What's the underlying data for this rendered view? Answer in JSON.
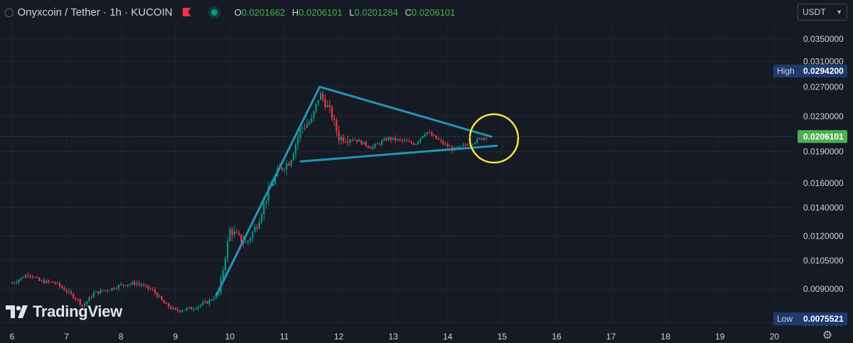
{
  "header": {
    "symbol": "Onyxcoin",
    "quote": "Tether",
    "interval": "1h",
    "exchange": "KUCOIN",
    "title_text": "Onyxcoin / Tether · 1h · KUCOIN",
    "ohlc": {
      "open_label": "O",
      "open": "0.0201662",
      "high_label": "H",
      "high": "0.0206101",
      "low_label": "L",
      "low": "0.0201284",
      "close_label": "C",
      "close": "0.0206101"
    },
    "currency_selector": "USDT",
    "icons": [
      "chevron-icon",
      "flag-icon",
      "status-dot-icon"
    ]
  },
  "watermark": "TradingView",
  "colors": {
    "background": "#161a25",
    "up": "#089981",
    "down": "#f23645",
    "trendline": "#2196b5",
    "circle": "#f5e339",
    "price_badge": "#4caf50",
    "marker_badge": "#1e3a6e"
  },
  "chart_data": {
    "type": "candlestick",
    "pair": "Onyxcoin / Tether",
    "interval": "1h",
    "x_ticks": [
      "6",
      "7",
      "8",
      "9",
      "10",
      "11",
      "12",
      "13",
      "14",
      "15",
      "16",
      "17",
      "18",
      "19",
      "20"
    ],
    "y_ticks": [
      "0.0350000",
      "0.0310000",
      "0.0270000",
      "0.0230000",
      "0.0190000",
      "0.0160000",
      "0.0140000",
      "0.0120000",
      "0.0105000",
      "0.0090000",
      "0.0075000"
    ],
    "y_scale": "log",
    "y_range": [
      0.0069,
      0.039
    ],
    "last_price": "0.0206101",
    "high_marker": {
      "label": "High",
      "value": "0.0294200"
    },
    "low_marker": {
      "label": "Low",
      "value": "0.0075521"
    },
    "trend": [
      [
        6.0,
        0.0093
      ],
      [
        6.2,
        0.0096
      ],
      [
        6.3,
        0.0098
      ],
      [
        6.5,
        0.0094
      ],
      [
        6.8,
        0.0093
      ],
      [
        7.0,
        0.0089
      ],
      [
        7.2,
        0.0085
      ],
      [
        7.3,
        0.0082
      ],
      [
        7.5,
        0.0088
      ],
      [
        7.8,
        0.009
      ],
      [
        8.0,
        0.0092
      ],
      [
        8.3,
        0.0093
      ],
      [
        8.6,
        0.0089
      ],
      [
        8.8,
        0.0083
      ],
      [
        9.0,
        0.008
      ],
      [
        9.3,
        0.0081
      ],
      [
        9.6,
        0.0084
      ],
      [
        9.8,
        0.0088
      ],
      [
        9.9,
        0.0105
      ],
      [
        10.0,
        0.0124
      ],
      [
        10.3,
        0.0115
      ],
      [
        10.5,
        0.0128
      ],
      [
        10.7,
        0.0152
      ],
      [
        10.9,
        0.0172
      ],
      [
        11.1,
        0.018
      ],
      [
        11.3,
        0.0215
      ],
      [
        11.5,
        0.0225
      ],
      [
        11.65,
        0.026
      ],
      [
        11.85,
        0.0235
      ],
      [
        12.0,
        0.0205
      ],
      [
        12.3,
        0.0203
      ],
      [
        12.6,
        0.0194
      ],
      [
        12.9,
        0.0204
      ],
      [
        13.2,
        0.0201
      ],
      [
        13.4,
        0.0198
      ],
      [
        13.6,
        0.0212
      ],
      [
        13.9,
        0.0199
      ],
      [
        14.1,
        0.0192
      ],
      [
        14.3,
        0.0196
      ],
      [
        14.5,
        0.0201
      ],
      [
        14.7,
        0.0206
      ]
    ],
    "annotations": {
      "pole_line": [
        [
          9.75,
          0.0087
        ],
        [
          11.65,
          0.027
        ]
      ],
      "upper_line": [
        [
          11.65,
          0.027
        ],
        [
          14.8,
          0.0206
        ]
      ],
      "lower_line": [
        [
          11.3,
          0.018
        ],
        [
          14.9,
          0.0196
        ]
      ],
      "circle_center": [
        14.85,
        0.0204
      ]
    }
  }
}
